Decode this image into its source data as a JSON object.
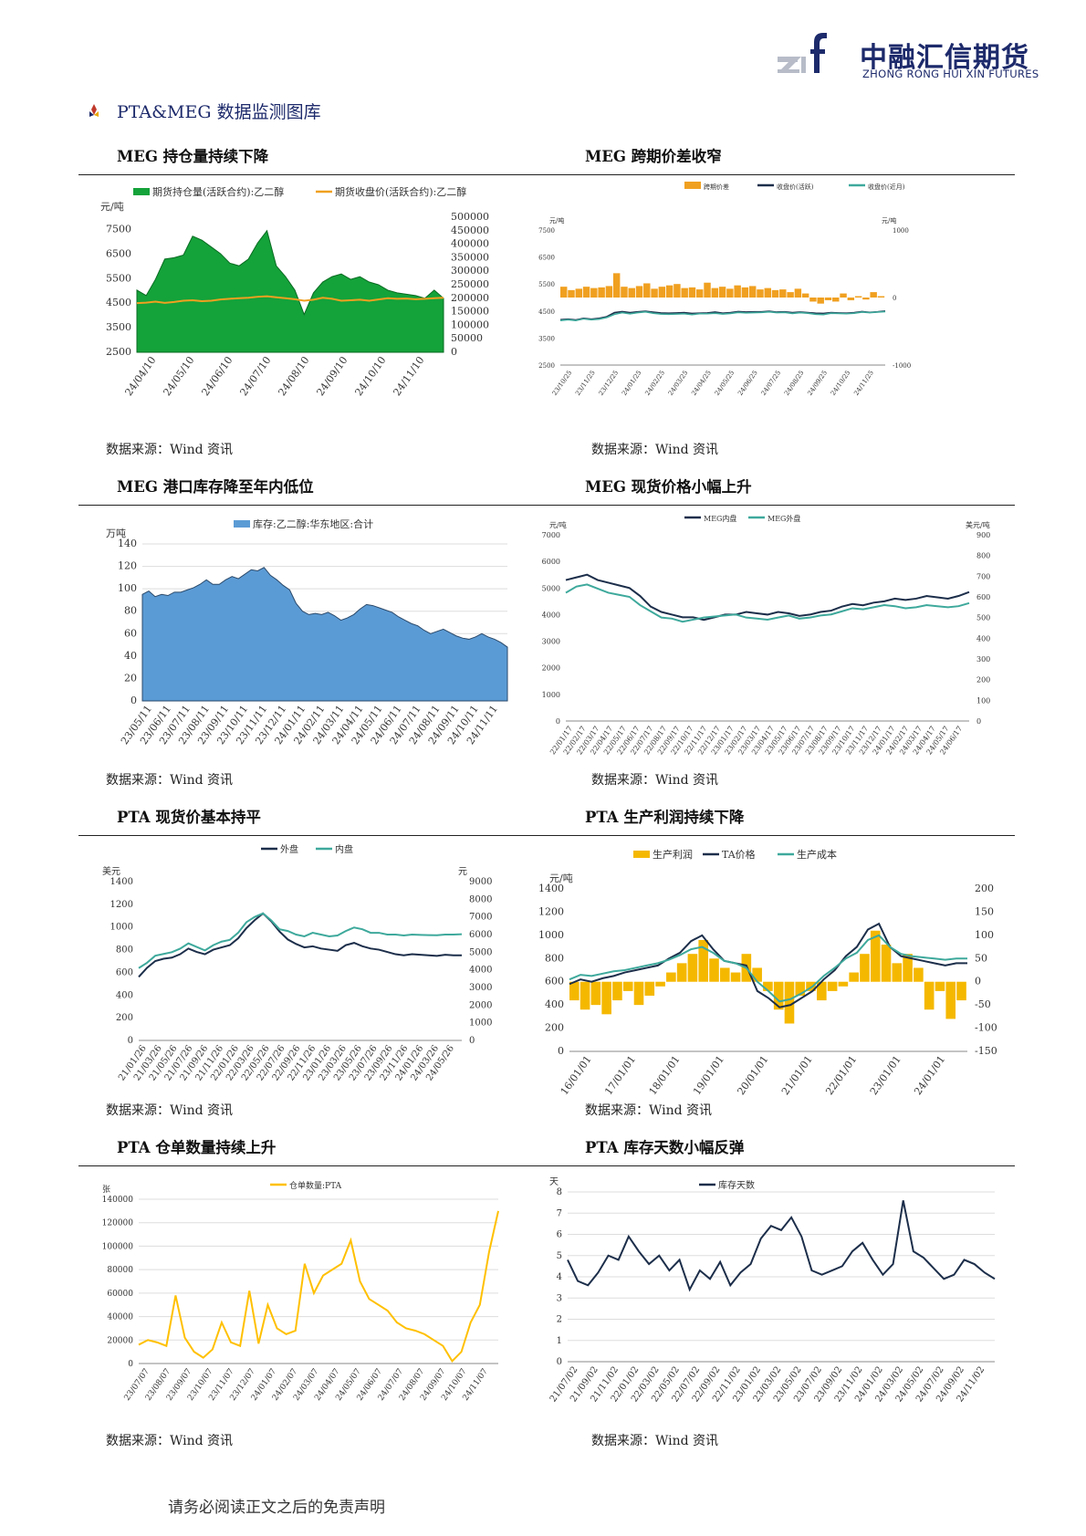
{
  "header": {
    "logo_mark": "zrf",
    "company_cn": "中融汇信期货",
    "company_en": "ZHONG RONG HUI XIN FUTURES",
    "section_title": "PTA&MEG 数据监测图库"
  },
  "colors": {
    "brand": "#1d2a6b",
    "green": "#14a23a",
    "orange": "#f0a020",
    "navy": "#1c2e4a",
    "teal": "#3ea99c",
    "blue": "#5b9bd5",
    "gold": "#f5b800",
    "yellow": "#ffc000"
  },
  "charts": [
    {
      "title": "MEG 持仓量持续下降",
      "source": "数据来源：Wind 资讯"
    },
    {
      "title": "MEG 跨期价差收窄",
      "source": "数据来源：Wind 资讯"
    },
    {
      "title": "MEG 港口库存降至年内低位",
      "source": "数据来源：Wind 资讯"
    },
    {
      "title": "MEG 现货价格小幅上升",
      "source": "数据来源：Wind 资讯"
    },
    {
      "title": "PTA 现货价基本持平",
      "source": "数据来源：Wind 资讯"
    },
    {
      "title": "PTA 生产利润持续下降",
      "source": "数据来源：Wind 资讯"
    },
    {
      "title": "PTA 仓单数量持续上升",
      "source": "数据来源：Wind 资讯"
    },
    {
      "title": "PTA 库存天数小幅反弹",
      "source": "数据来源：Wind 资讯"
    }
  ],
  "footer": "请务必阅读正文之后的免责声明",
  "chart_data": [
    {
      "type": "area",
      "unit_left": "元/吨",
      "series": [
        {
          "name": "期货持仓量(活跃合约):乙二醇",
          "kind": "area",
          "axis": "right",
          "values": [
            230000,
            210000,
            270000,
            345000,
            350000,
            360000,
            430000,
            415000,
            390000,
            365000,
            330000,
            320000,
            345000,
            405000,
            450000,
            320000,
            280000,
            230000,
            140000,
            220000,
            260000,
            280000,
            290000,
            270000,
            280000,
            260000,
            250000,
            230000,
            220000,
            215000,
            210000,
            200000,
            230000,
            200000
          ]
        },
        {
          "name": "期货收盘价(活跃合约):乙二醇",
          "kind": "line",
          "axis": "left",
          "values": [
            4500,
            4520,
            4560,
            4510,
            4550,
            4600,
            4620,
            4580,
            4600,
            4650,
            4680,
            4700,
            4720,
            4760,
            4780,
            4740,
            4700,
            4660,
            4600,
            4640,
            4720,
            4680,
            4600,
            4620,
            4640,
            4600,
            4650,
            4700,
            4680,
            4690,
            4660,
            4680,
            4700,
            4720
          ]
        }
      ],
      "x_ticks": [
        "24/04/10",
        "24/05/10",
        "24/06/10",
        "24/07/10",
        "24/08/10",
        "24/09/10",
        "24/10/10",
        "24/11/10"
      ],
      "y_left_ticks": [
        "7500",
        "6500",
        "5500",
        "4500",
        "3500",
        "2500"
      ],
      "y_left_range": [
        2500,
        8000
      ],
      "y_right_ticks": [
        "500000",
        "450000",
        "400000",
        "350000",
        "300000",
        "250000",
        "200000",
        "150000",
        "100000",
        "50000",
        "0"
      ],
      "y_right_range": [
        0,
        500000
      ]
    },
    {
      "type": "line",
      "unit_left": "元/吨",
      "unit_right": "元/吨",
      "series": [
        {
          "name": "跨期价差",
          "kind": "bar",
          "axis": "right",
          "values": [
            160,
            110,
            130,
            160,
            140,
            150,
            170,
            360,
            160,
            140,
            170,
            210,
            130,
            160,
            180,
            200,
            140,
            150,
            120,
            220,
            140,
            160,
            130,
            180,
            150,
            170,
            120,
            140,
            110,
            120,
            80,
            130,
            60,
            -60,
            -90,
            -40,
            -60,
            60,
            -40,
            20,
            -30,
            80,
            20
          ]
        },
        {
          "name": "收盘价(活跃)",
          "kind": "line",
          "axis": "left",
          "values": [
            4180,
            4200,
            4170,
            4230,
            4200,
            4230,
            4290,
            4440,
            4480,
            4440,
            4470,
            4490,
            4460,
            4430,
            4420,
            4430,
            4440,
            4410,
            4420,
            4430,
            4460,
            4420,
            4440,
            4480,
            4460,
            4470,
            4470,
            4490,
            4460,
            4470,
            4440,
            4460,
            4440,
            4420,
            4410,
            4440,
            4430,
            4420,
            4440,
            4480,
            4450,
            4470,
            4500
          ]
        },
        {
          "name": "收盘价(近月)",
          "kind": "line",
          "axis": "left",
          "values": [
            4150,
            4180,
            4150,
            4210,
            4180,
            4200,
            4260,
            4380,
            4440,
            4400,
            4440,
            4470,
            4420,
            4390,
            4380,
            4390,
            4400,
            4370,
            4400,
            4400,
            4420,
            4390,
            4410,
            4450,
            4430,
            4440,
            4450,
            4470,
            4440,
            4450,
            4410,
            4440,
            4420,
            4380,
            4370,
            4420,
            4410,
            4400,
            4420,
            4460,
            4440,
            4460,
            4480
          ]
        }
      ],
      "x_ticks": [
        "23/10/25",
        "23/11/25",
        "23/12/25",
        "24/01/25",
        "24/02/25",
        "24/03/25",
        "24/04/25",
        "24/05/25",
        "24/06/25",
        "24/07/25",
        "24/08/25",
        "24/09/25",
        "24/10/25",
        "24/11/25"
      ],
      "y_left_ticks": [
        "7500",
        "6500",
        "5500",
        "4500",
        "3500",
        "2500"
      ],
      "y_left_range": [
        2500,
        7500
      ],
      "y_right_ticks": [
        "1000",
        "0",
        "-1000"
      ],
      "y_right_range": [
        -1000,
        1000
      ]
    },
    {
      "type": "area",
      "unit_left": "万吨",
      "series": [
        {
          "name": "库存:乙二醇:华东地区:合计",
          "values": [
            95,
            98,
            93,
            95,
            94,
            97,
            97,
            99,
            101,
            104,
            108,
            104,
            104,
            108,
            111,
            109,
            113,
            117,
            116,
            119,
            112,
            108,
            103,
            99,
            87,
            80,
            77,
            78,
            77,
            79,
            76,
            72,
            74,
            77,
            82,
            86,
            85,
            83,
            81,
            79,
            75,
            72,
            69,
            67,
            63,
            60,
            62,
            64,
            61,
            58,
            56,
            55,
            57,
            60,
            57,
            55,
            52,
            48
          ]
        }
      ],
      "x_ticks": [
        "23/05/11",
        "23/06/11",
        "23/07/11",
        "23/08/11",
        "23/09/11",
        "23/10/11",
        "23/11/11",
        "23/12/11",
        "24/01/11",
        "24/02/11",
        "24/03/11",
        "24/04/11",
        "24/05/11",
        "24/06/11",
        "24/07/11",
        "24/08/11",
        "24/09/11",
        "24/10/11",
        "24/11/11"
      ],
      "y_left_ticks": [
        "140",
        "120",
        "100",
        "80",
        "60",
        "40",
        "20",
        "0"
      ],
      "y_left_range": [
        0,
        140
      ]
    },
    {
      "type": "line",
      "unit_left": "元/吨",
      "unit_right": "美元/吨",
      "series": [
        {
          "name": "MEG内盘",
          "axis": "left",
          "values": [
            5300,
            5400,
            5500,
            5300,
            5200,
            5100,
            5000,
            4700,
            4300,
            4100,
            4000,
            3900,
            3900,
            3800,
            3900,
            4000,
            4000,
            4100,
            4050,
            4000,
            4100,
            4050,
            3950,
            4000,
            4100,
            4150,
            4300,
            4400,
            4350,
            4450,
            4500,
            4600,
            4550,
            4600,
            4700,
            4650,
            4600,
            4700,
            4850
          ]
        },
        {
          "name": "MEG外盘",
          "axis": "right",
          "values": [
            620,
            650,
            660,
            640,
            620,
            610,
            600,
            560,
            530,
            500,
            495,
            480,
            490,
            500,
            505,
            510,
            515,
            500,
            495,
            490,
            500,
            510,
            495,
            500,
            510,
            515,
            530,
            545,
            540,
            550,
            560,
            555,
            545,
            550,
            560,
            555,
            550,
            555,
            570
          ]
        }
      ],
      "x_ticks": [
        "22/01/17",
        "22/02/17",
        "22/03/17",
        "22/04/17",
        "22/05/17",
        "22/06/17",
        "22/07/17",
        "22/08/17",
        "22/09/17",
        "22/10/17",
        "22/11/17",
        "22/12/17",
        "23/01/17",
        "23/02/17",
        "23/03/17",
        "23/04/17",
        "23/05/17",
        "23/06/17",
        "23/07/17",
        "23/08/17",
        "23/09/17",
        "23/10/17",
        "23/11/17",
        "23/12/17",
        "24/01/17",
        "24/02/17",
        "24/03/17",
        "24/04/17",
        "24/05/17",
        "24/06/17"
      ],
      "y_left_ticks": [
        "7000",
        "6000",
        "5000",
        "4000",
        "3000",
        "2000",
        "1000",
        "0"
      ],
      "y_left_range": [
        0,
        7000
      ],
      "y_right_ticks": [
        "900",
        "800",
        "700",
        "600",
        "500",
        "400",
        "300",
        "200",
        "100",
        "0"
      ],
      "y_right_range": [
        0,
        900
      ]
    },
    {
      "type": "line",
      "unit_left": "美元",
      "unit_right": "元",
      "series": [
        {
          "name": "外盘",
          "axis": "left",
          "values": [
            560,
            640,
            700,
            720,
            730,
            760,
            810,
            780,
            760,
            800,
            820,
            840,
            900,
            990,
            1060,
            1120,
            1050,
            960,
            890,
            850,
            820,
            830,
            810,
            800,
            790,
            840,
            860,
            830,
            810,
            800,
            780,
            760,
            750,
            760,
            755,
            750,
            745,
            755,
            750,
            750
          ]
        },
        {
          "name": "内盘",
          "axis": "right",
          "values": [
            4100,
            4400,
            4800,
            4900,
            5000,
            5200,
            5500,
            5300,
            5100,
            5400,
            5600,
            5700,
            6100,
            6700,
            7000,
            7200,
            6800,
            6300,
            6200,
            6000,
            5900,
            6100,
            6000,
            5900,
            5950,
            6200,
            6400,
            6300,
            6100,
            6100,
            6000,
            6000,
            5950,
            6000,
            5980,
            5970,
            5960,
            6000,
            6000,
            6020
          ]
        }
      ],
      "x_ticks": [
        "21/01/26",
        "21/03/26",
        "21/05/26",
        "21/07/26",
        "21/09/26",
        "21/11/26",
        "22/01/26",
        "22/03/26",
        "22/05/26",
        "22/07/26",
        "22/09/26",
        "22/11/26",
        "23/01/26",
        "23/03/26",
        "23/05/26",
        "23/07/26",
        "23/09/26",
        "23/11/26",
        "24/01/26",
        "24/03/26",
        "24/05/26"
      ],
      "y_left_ticks": [
        "1400",
        "1200",
        "1000",
        "800",
        "600",
        "400",
        "200",
        "0"
      ],
      "y_left_range": [
        0,
        1400
      ],
      "y_right_ticks": [
        "9000",
        "8000",
        "7000",
        "6000",
        "5000",
        "4000",
        "3000",
        "2000",
        "1000",
        "0"
      ],
      "y_right_range": [
        0,
        9000
      ]
    },
    {
      "type": "line",
      "unit_left": "元/吨",
      "series": [
        {
          "name": "生产利润",
          "kind": "bar",
          "axis": "right",
          "values": [
            -40,
            -60,
            -50,
            -70,
            -40,
            -20,
            -50,
            -30,
            -10,
            20,
            40,
            60,
            90,
            50,
            30,
            20,
            60,
            30,
            -20,
            -60,
            -90,
            -30,
            -20,
            -40,
            -20,
            -10,
            20,
            60,
            110,
            80,
            40,
            60,
            30,
            -60,
            -20,
            -80,
            -40
          ]
        },
        {
          "name": "TA价格",
          "axis": "left",
          "values": [
            580,
            620,
            600,
            630,
            650,
            680,
            700,
            720,
            740,
            800,
            850,
            950,
            1000,
            880,
            780,
            760,
            740,
            520,
            460,
            380,
            400,
            460,
            520,
            620,
            700,
            820,
            900,
            1050,
            1100,
            900,
            820,
            800,
            780,
            760,
            740,
            760,
            760
          ]
        },
        {
          "name": "生产成本",
          "axis": "left",
          "values": [
            620,
            660,
            650,
            670,
            690,
            700,
            720,
            740,
            760,
            790,
            830,
            880,
            900,
            850,
            780,
            760,
            720,
            600,
            520,
            430,
            450,
            500,
            560,
            650,
            720,
            800,
            850,
            960,
            1000,
            900,
            840,
            820,
            810,
            800,
            790,
            800,
            800
          ]
        }
      ],
      "x_ticks": [
        "16/01/01",
        "17/01/01",
        "18/01/01",
        "19/01/01",
        "20/01/01",
        "21/01/01",
        "22/01/01",
        "23/01/01",
        "24/01/01"
      ],
      "y_left_ticks": [
        "1400",
        "1200",
        "1000",
        "800",
        "600",
        "400",
        "200",
        "0"
      ],
      "y_left_range": [
        0,
        1400
      ],
      "y_right_ticks": [
        "200",
        "150",
        "100",
        "50",
        "0",
        "-50",
        "-100",
        "-150"
      ],
      "y_right_range": [
        -150,
        200
      ]
    },
    {
      "type": "line",
      "unit_left": "张",
      "series": [
        {
          "name": "仓单数量:PTA",
          "values": [
            16000,
            20000,
            18000,
            15000,
            58000,
            22000,
            10000,
            5000,
            12000,
            35000,
            18000,
            15000,
            62000,
            17000,
            50000,
            30000,
            25000,
            28000,
            85000,
            60000,
            75000,
            80000,
            85000,
            105000,
            70000,
            55000,
            50000,
            45000,
            35000,
            30000,
            28000,
            25000,
            20000,
            15000,
            2000,
            10000,
            35000,
            50000,
            95000,
            130000
          ]
        }
      ],
      "x_ticks": [
        "23/07/07",
        "23/08/07",
        "23/09/07",
        "23/10/07",
        "23/11/07",
        "23/12/07",
        "24/01/07",
        "24/02/07",
        "24/03/07",
        "24/04/07",
        "24/05/07",
        "24/06/07",
        "24/07/07",
        "24/08/07",
        "24/09/07",
        "24/10/07",
        "24/11/07"
      ],
      "y_left_ticks": [
        "140000",
        "120000",
        "100000",
        "80000",
        "60000",
        "40000",
        "20000",
        "0"
      ],
      "y_left_range": [
        0,
        140000
      ]
    },
    {
      "type": "line",
      "unit_left": "天",
      "series": [
        {
          "name": "库存天数",
          "values": [
            4.8,
            3.8,
            3.6,
            4.2,
            5.0,
            4.8,
            5.9,
            5.2,
            4.6,
            5.0,
            4.3,
            4.8,
            3.4,
            4.3,
            3.9,
            4.7,
            3.6,
            4.2,
            4.6,
            5.8,
            6.4,
            6.2,
            6.8,
            5.9,
            4.3,
            4.1,
            4.3,
            4.5,
            5.2,
            5.6,
            4.8,
            4.1,
            4.6,
            7.6,
            5.2,
            4.9,
            4.4,
            3.9,
            4.1,
            4.8,
            4.6,
            4.2,
            3.9
          ]
        }
      ],
      "x_ticks": [
        "21/07/02",
        "21/09/02",
        "21/11/02",
        "22/01/02",
        "22/03/02",
        "22/05/02",
        "22/07/02",
        "22/09/02",
        "22/11/02",
        "23/01/02",
        "23/03/02",
        "23/05/02",
        "23/07/02",
        "23/09/02",
        "23/11/02",
        "24/01/02",
        "24/03/02",
        "24/05/02",
        "24/07/02",
        "24/09/02",
        "24/11/02"
      ],
      "y_left_ticks": [
        "8",
        "7",
        "6",
        "5",
        "4",
        "3",
        "2",
        "1",
        "0"
      ],
      "y_left_range": [
        0,
        8
      ]
    }
  ]
}
